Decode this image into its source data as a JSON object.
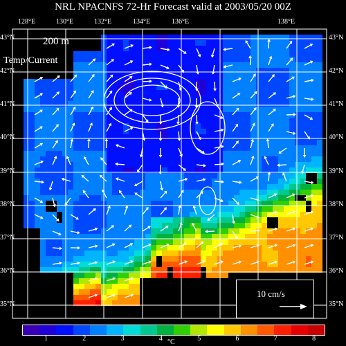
{
  "title": "NRL NPACNFS 72-Hr Forecast valid at 2003/05/20 00Z",
  "depth_label": "200 m",
  "product_label": "Temp/Current",
  "reference_vector": {
    "label": "10 cm/s",
    "speed_cm_s": 10
  },
  "longitude_labels": [
    "128°E",
    "130°E",
    "132°E",
    "134°E",
    "136°E",
    "138°E"
  ],
  "latitude_labels": [
    "43°N",
    "42°N",
    "41°N",
    "40°N",
    "39°N",
    "38°N",
    "37°N",
    "36°N",
    "35°N"
  ],
  "colorbar": {
    "tick_labels": [
      "1",
      "2",
      "3",
      "4",
      "5",
      "6",
      "7",
      "8"
    ],
    "unit": "°C",
    "colors": [
      "#3a00b8",
      "#2000d8",
      "#0010ff",
      "#0048ff",
      "#0080ff",
      "#00b4ff",
      "#00dcd8",
      "#00c890",
      "#00b040",
      "#30d000",
      "#b0e800",
      "#ffff00",
      "#ffc800",
      "#ff9000",
      "#ff5800",
      "#ff2000",
      "#e80000",
      "#c80000"
    ]
  },
  "map": {
    "lon_range": [
      127.5,
      139.2
    ],
    "lat_range": [
      34.6,
      43.3
    ],
    "land_color": "#000000",
    "grid_color": "#ffffff"
  }
}
